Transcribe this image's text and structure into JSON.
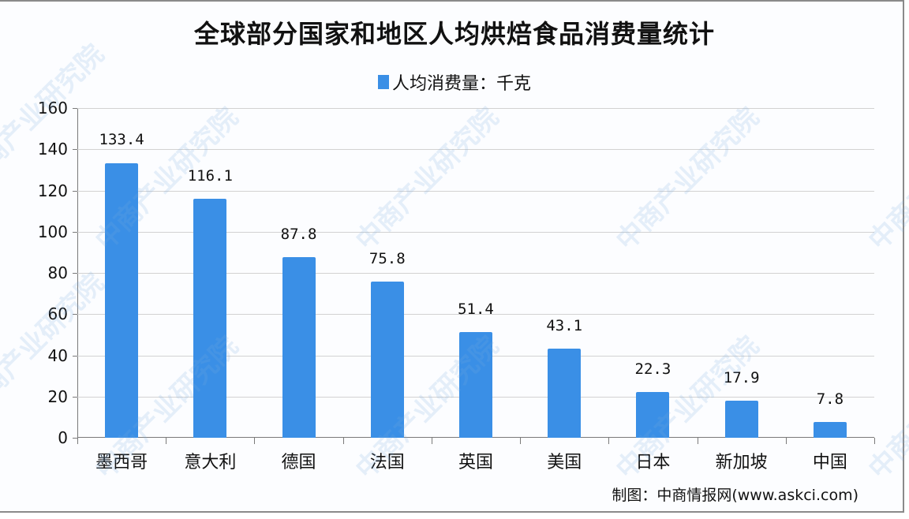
{
  "title": "全球部分国家和地区人均烘焙食品消费量统计",
  "legend": {
    "label": "人均消费量：千克",
    "color": "#3a8fe6"
  },
  "source": "制图：中商情报网(www.askci.com)",
  "watermark": "中商产业研究院",
  "y_ticks": [
    "0",
    "20",
    "40",
    "60",
    "80",
    "100",
    "120",
    "140",
    "160"
  ],
  "bars": [
    {
      "category": "墨西哥",
      "value": 133.4,
      "label": "133.4"
    },
    {
      "category": "意大利",
      "value": 116.1,
      "label": "116.1"
    },
    {
      "category": "德国",
      "value": 87.8,
      "label": "87.8"
    },
    {
      "category": "法国",
      "value": 75.8,
      "label": "75.8"
    },
    {
      "category": "英国",
      "value": 51.4,
      "label": "51.4"
    },
    {
      "category": "美国",
      "value": 43.1,
      "label": "43.1"
    },
    {
      "category": "日本",
      "value": 22.3,
      "label": "22.3"
    },
    {
      "category": "新加坡",
      "value": 17.9,
      "label": "17.9"
    },
    {
      "category": "中国",
      "value": 7.8,
      "label": "7.8"
    }
  ],
  "chart_data": {
    "type": "bar",
    "title": "全球部分国家和地区人均烘焙食品消费量统计",
    "categories": [
      "墨西哥",
      "意大利",
      "德国",
      "法国",
      "英国",
      "美国",
      "日本",
      "新加坡",
      "中国"
    ],
    "series": [
      {
        "name": "人均消费量：千克",
        "values": [
          133.4,
          116.1,
          87.8,
          75.8,
          51.4,
          43.1,
          22.3,
          17.9,
          7.8
        ]
      }
    ],
    "xlabel": "",
    "ylabel": "",
    "ylim": [
      0,
      160
    ],
    "yticks": [
      0,
      20,
      40,
      60,
      80,
      100,
      120,
      140,
      160
    ],
    "grid": true,
    "legend_position": "top",
    "data_labels": true,
    "bar_color": "#3a8fe6",
    "annotations": [
      "制图：中商情报网(www.askci.com)"
    ]
  }
}
